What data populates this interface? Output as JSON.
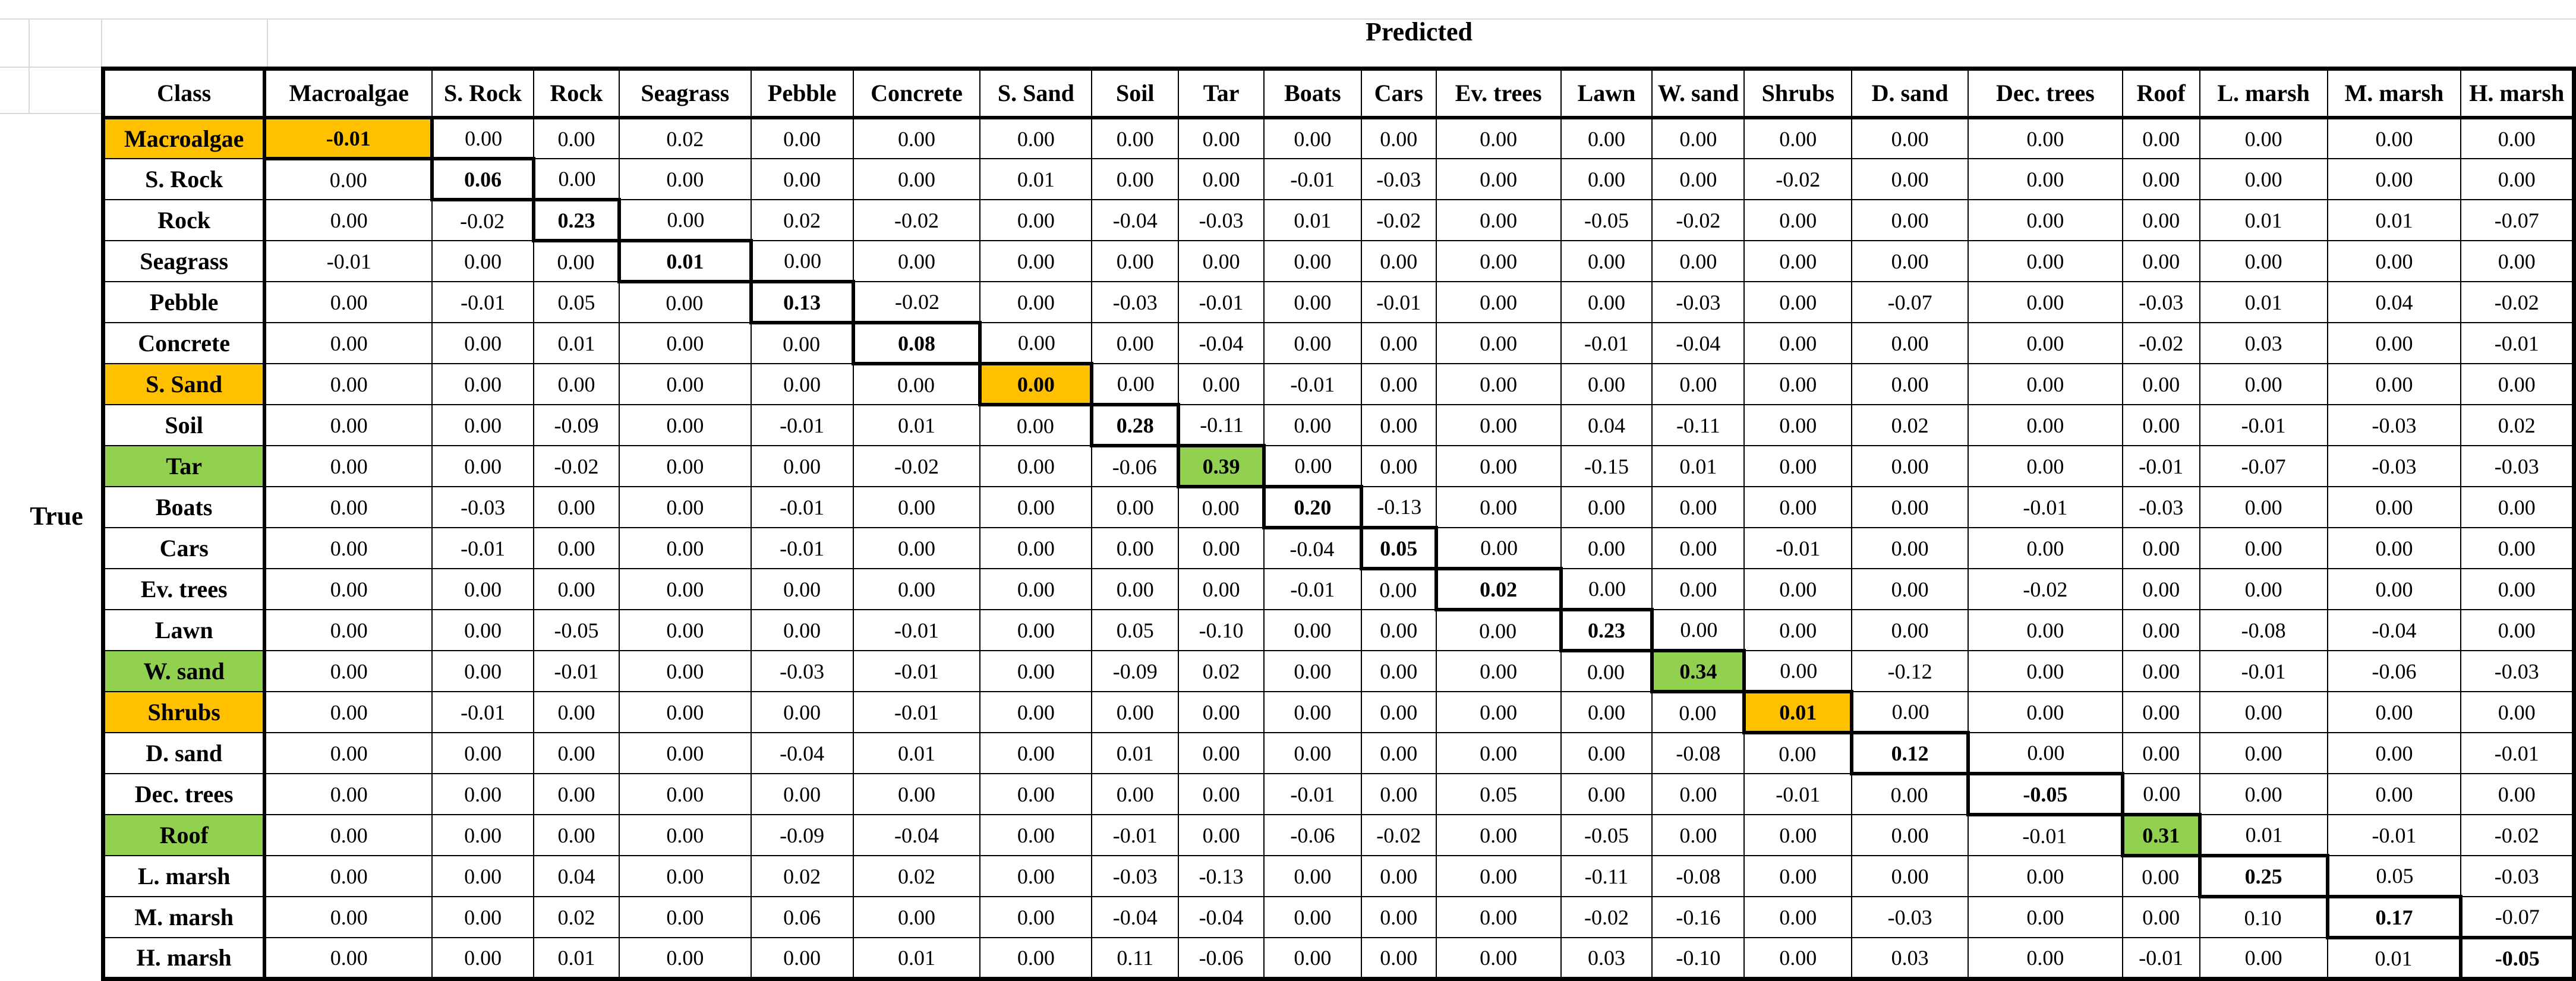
{
  "axis_labels": {
    "predicted": "Predicted",
    "true": "True"
  },
  "corner_label": "Class",
  "highlight_colors": {
    "orange": "#FFC000",
    "green": "#92D050"
  },
  "row_highlight": [
    "orange",
    null,
    null,
    null,
    null,
    null,
    "orange",
    null,
    "green",
    null,
    null,
    null,
    null,
    "green",
    "orange",
    null,
    null,
    "green",
    null,
    null,
    null
  ],
  "chart_data": {
    "type": "heatmap",
    "x_axis_label": "Predicted",
    "y_axis_label": "True",
    "categories": [
      "Macroalgae",
      "S. Rock",
      "Rock",
      "Seagrass",
      "Pebble",
      "Concrete",
      "S. Sand",
      "Soil",
      "Tar",
      "Boats",
      "Cars",
      "Ev. trees",
      "Lawn",
      "W. sand",
      "Shrubs",
      "D. sand",
      "Dec. trees",
      "Roof",
      "L. marsh",
      "M. marsh",
      "H. marsh"
    ],
    "matrix": [
      [
        -0.01,
        0.0,
        0.0,
        0.02,
        0.0,
        0.0,
        0.0,
        0.0,
        0.0,
        0.0,
        0.0,
        0.0,
        0.0,
        0.0,
        0.0,
        0.0,
        0.0,
        0.0,
        0.0,
        0.0,
        0.0
      ],
      [
        0.0,
        0.06,
        0.0,
        0.0,
        0.0,
        0.0,
        0.01,
        0.0,
        0.0,
        -0.01,
        -0.03,
        0.0,
        0.0,
        0.0,
        -0.02,
        0.0,
        0.0,
        0.0,
        0.0,
        0.0,
        0.0
      ],
      [
        0.0,
        -0.02,
        0.23,
        0.0,
        0.02,
        -0.02,
        0.0,
        -0.04,
        -0.03,
        0.01,
        -0.02,
        0.0,
        -0.05,
        -0.02,
        0.0,
        0.0,
        0.0,
        0.0,
        0.01,
        0.01,
        -0.07
      ],
      [
        -0.01,
        0.0,
        0.0,
        0.01,
        0.0,
        0.0,
        0.0,
        0.0,
        0.0,
        0.0,
        0.0,
        0.0,
        0.0,
        0.0,
        0.0,
        0.0,
        0.0,
        0.0,
        0.0,
        0.0,
        0.0
      ],
      [
        0.0,
        -0.01,
        0.05,
        0.0,
        0.13,
        -0.02,
        0.0,
        -0.03,
        -0.01,
        0.0,
        -0.01,
        0.0,
        0.0,
        -0.03,
        0.0,
        -0.07,
        0.0,
        -0.03,
        0.01,
        0.04,
        -0.02
      ],
      [
        0.0,
        0.0,
        0.01,
        0.0,
        0.0,
        0.08,
        0.0,
        0.0,
        -0.04,
        0.0,
        0.0,
        0.0,
        -0.01,
        -0.04,
        0.0,
        0.0,
        0.0,
        -0.02,
        0.03,
        0.0,
        -0.01
      ],
      [
        0.0,
        0.0,
        0.0,
        0.0,
        0.0,
        0.0,
        0.0,
        0.0,
        0.0,
        -0.01,
        0.0,
        0.0,
        0.0,
        0.0,
        0.0,
        0.0,
        0.0,
        0.0,
        0.0,
        0.0,
        0.0
      ],
      [
        0.0,
        0.0,
        -0.09,
        0.0,
        -0.01,
        0.01,
        0.0,
        0.28,
        -0.11,
        0.0,
        0.0,
        0.0,
        0.04,
        -0.11,
        0.0,
        0.02,
        0.0,
        0.0,
        -0.01,
        -0.03,
        0.02
      ],
      [
        0.0,
        0.0,
        -0.02,
        0.0,
        0.0,
        -0.02,
        0.0,
        -0.06,
        0.39,
        0.0,
        0.0,
        0.0,
        -0.15,
        0.01,
        0.0,
        0.0,
        0.0,
        -0.01,
        -0.07,
        -0.03,
        -0.03
      ],
      [
        0.0,
        -0.03,
        0.0,
        0.0,
        -0.01,
        0.0,
        0.0,
        0.0,
        0.0,
        0.2,
        -0.13,
        0.0,
        0.0,
        0.0,
        0.0,
        0.0,
        -0.01,
        -0.03,
        0.0,
        0.0,
        0.0
      ],
      [
        0.0,
        -0.01,
        0.0,
        0.0,
        -0.01,
        0.0,
        0.0,
        0.0,
        0.0,
        -0.04,
        0.05,
        0.0,
        0.0,
        0.0,
        -0.01,
        0.0,
        0.0,
        0.0,
        0.0,
        0.0,
        0.0
      ],
      [
        0.0,
        0.0,
        0.0,
        0.0,
        0.0,
        0.0,
        0.0,
        0.0,
        0.0,
        -0.01,
        0.0,
        0.02,
        0.0,
        0.0,
        0.0,
        0.0,
        -0.02,
        0.0,
        0.0,
        0.0,
        0.0
      ],
      [
        0.0,
        0.0,
        -0.05,
        0.0,
        0.0,
        -0.01,
        0.0,
        0.05,
        -0.1,
        0.0,
        0.0,
        0.0,
        0.23,
        0.0,
        0.0,
        0.0,
        0.0,
        0.0,
        -0.08,
        -0.04,
        0.0
      ],
      [
        0.0,
        0.0,
        -0.01,
        0.0,
        -0.03,
        -0.01,
        0.0,
        -0.09,
        0.02,
        0.0,
        0.0,
        0.0,
        0.0,
        0.34,
        0.0,
        -0.12,
        0.0,
        0.0,
        -0.01,
        -0.06,
        -0.03
      ],
      [
        0.0,
        -0.01,
        0.0,
        0.0,
        0.0,
        -0.01,
        0.0,
        0.0,
        0.0,
        0.0,
        0.0,
        0.0,
        0.0,
        0.0,
        0.01,
        0.0,
        0.0,
        0.0,
        0.0,
        0.0,
        0.0
      ],
      [
        0.0,
        0.0,
        0.0,
        0.0,
        -0.04,
        0.01,
        0.0,
        0.01,
        0.0,
        0.0,
        0.0,
        0.0,
        0.0,
        -0.08,
        0.0,
        0.12,
        0.0,
        0.0,
        0.0,
        0.0,
        -0.01
      ],
      [
        0.0,
        0.0,
        0.0,
        0.0,
        0.0,
        0.0,
        0.0,
        0.0,
        0.0,
        -0.01,
        0.0,
        0.05,
        0.0,
        0.0,
        -0.01,
        0.0,
        -0.05,
        0.0,
        0.0,
        0.0,
        0.0
      ],
      [
        0.0,
        0.0,
        0.0,
        0.0,
        -0.09,
        -0.04,
        0.0,
        -0.01,
        0.0,
        -0.06,
        -0.02,
        0.0,
        -0.05,
        0.0,
        0.0,
        0.0,
        -0.01,
        0.31,
        0.01,
        -0.01,
        -0.02
      ],
      [
        0.0,
        0.0,
        0.04,
        0.0,
        0.02,
        0.02,
        0.0,
        -0.03,
        -0.13,
        0.0,
        0.0,
        0.0,
        -0.11,
        -0.08,
        0.0,
        0.0,
        0.0,
        0.0,
        0.25,
        0.05,
        -0.03
      ],
      [
        0.0,
        0.0,
        0.02,
        0.0,
        0.06,
        0.0,
        0.0,
        -0.04,
        -0.04,
        0.0,
        0.0,
        0.0,
        -0.02,
        -0.16,
        0.0,
        -0.03,
        0.0,
        0.0,
        0.1,
        0.17,
        -0.07
      ],
      [
        0.0,
        0.0,
        0.01,
        0.0,
        0.0,
        0.01,
        0.0,
        0.11,
        -0.06,
        0.0,
        0.0,
        0.0,
        0.03,
        -0.1,
        0.0,
        0.03,
        0.0,
        -0.01,
        0.0,
        0.01,
        -0.05
      ]
    ]
  }
}
